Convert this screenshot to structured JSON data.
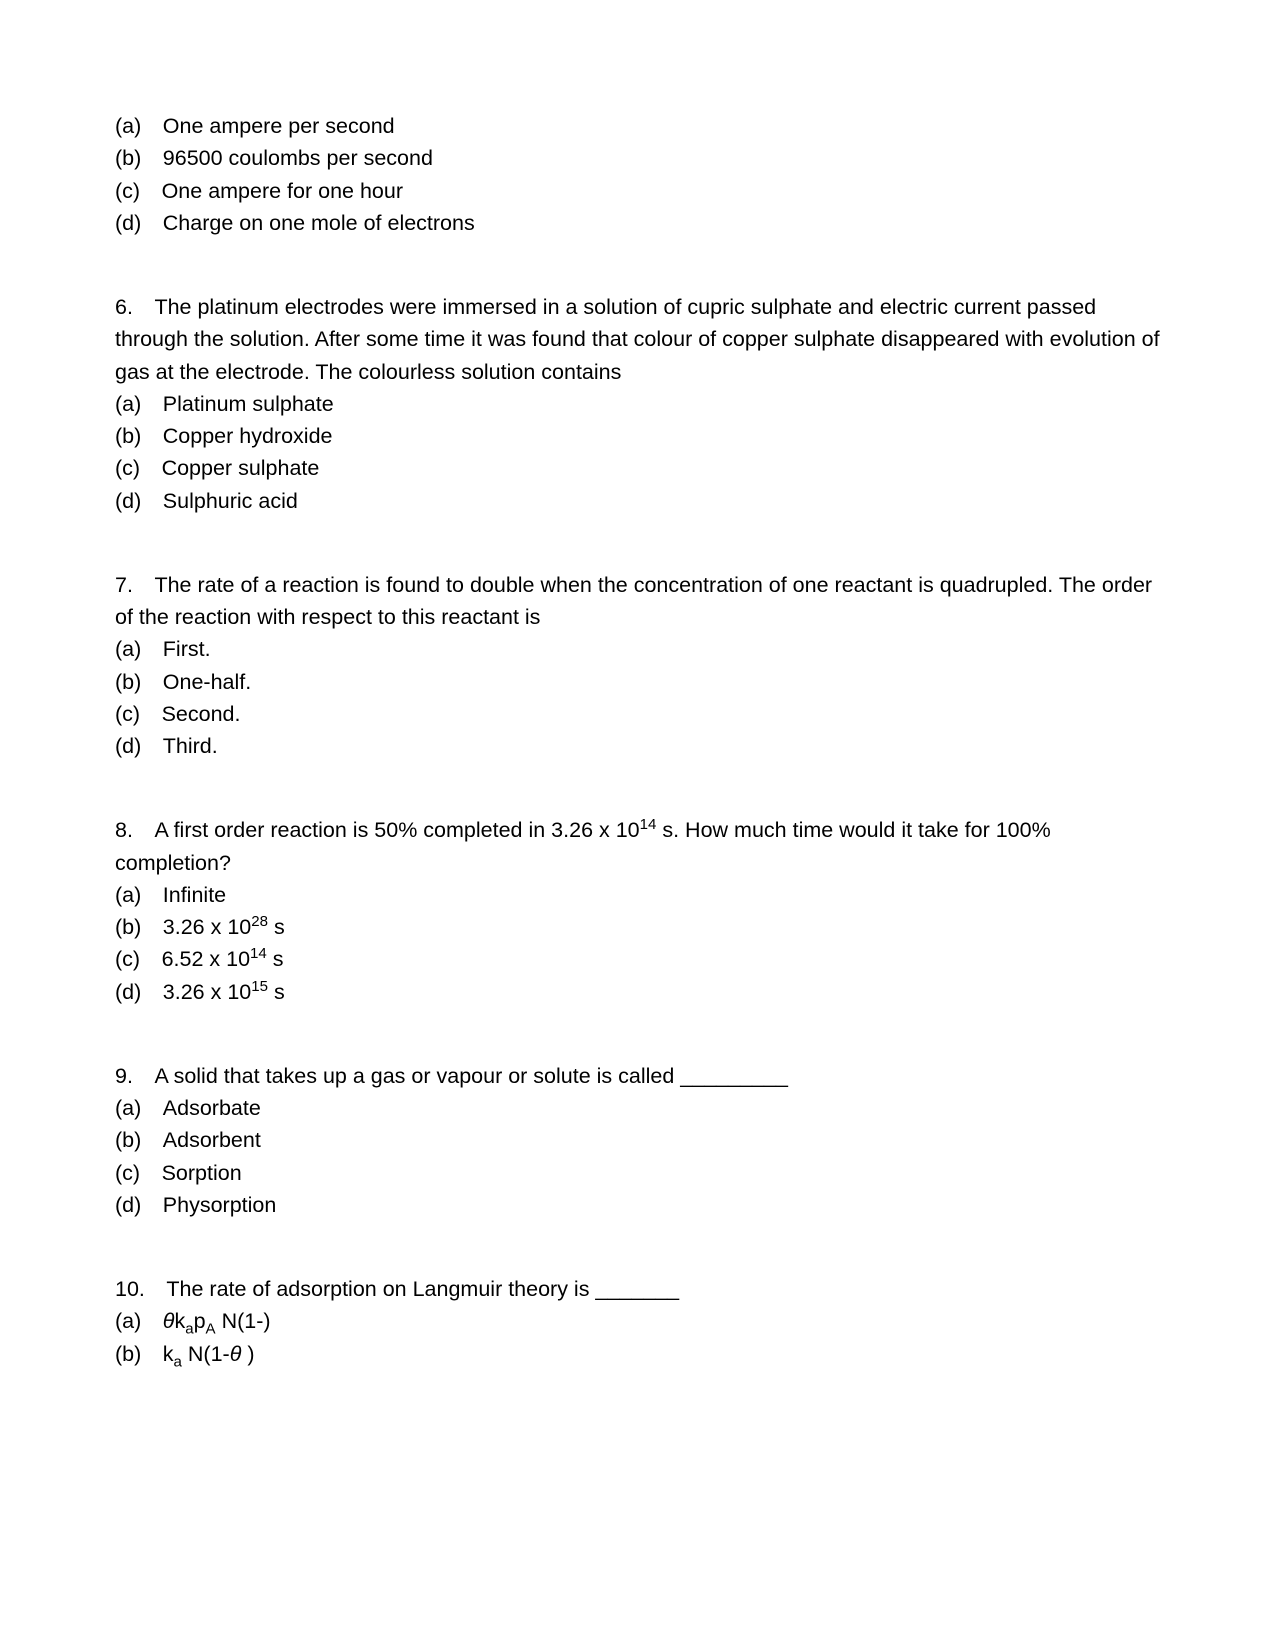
{
  "q5_tail": {
    "options": [
      {
        "letter": "(a)",
        "text": "One ampere per second"
      },
      {
        "letter": "(b)",
        "text": "96500 coulombs per second"
      },
      {
        "letter": "(c)",
        "text": "One ampere for one hour"
      },
      {
        "letter": "(d)",
        "text": "Charge on one mole of electrons"
      }
    ]
  },
  "q6": {
    "number": "6.",
    "stem": "The platinum electrodes were immersed in a solution of cupric sulphate and electric current passed through the solution. After some time it was found that colour of copper sulphate disappeared with evolution of gas at the electrode. The colourless solution contains",
    "options": [
      {
        "letter": "(a)",
        "text": "Platinum sulphate"
      },
      {
        "letter": "(b)",
        "text": "Copper hydroxide"
      },
      {
        "letter": "(c)",
        "text": "Copper sulphate"
      },
      {
        "letter": "(d)",
        "text": "Sulphuric acid"
      }
    ]
  },
  "q7": {
    "number": "7.",
    "stem": "The rate of a reaction is found to double when the concentration of one reactant is quadrupled. The order of the reaction with respect to this reactant is",
    "options": [
      {
        "letter": "(a)",
        "text": "First."
      },
      {
        "letter": "(b)",
        "text": "One-half."
      },
      {
        "letter": "(c)",
        "text": "Second."
      },
      {
        "letter": "(d)",
        "text": "Third."
      }
    ]
  },
  "q8": {
    "number": "8.",
    "stem_pre": "A first order reaction is 50% completed in 3.26 x 10",
    "stem_sup": "14",
    "stem_post": " s. How much time would it take for 100% completion?",
    "options": {
      "a": {
        "letter": "(a)",
        "text": "Infinite"
      },
      "b": {
        "letter": "(b)",
        "pre": "3.26 x 10",
        "sup": "28",
        "post": " s"
      },
      "c": {
        "letter": "(c)",
        "pre": "6.52 x 10",
        "sup": "14",
        "post": " s"
      },
      "d": {
        "letter": "(d)",
        "pre": "3.26 x 10",
        "sup": "15",
        "post": " s"
      }
    }
  },
  "q9": {
    "number": "9.",
    "stem": "A solid that takes up a gas or vapour or solute is called _________",
    "options": [
      {
        "letter": "(a)",
        "text": "Adsorbate"
      },
      {
        "letter": "(b)",
        "text": "Adsorbent"
      },
      {
        "letter": "(c)",
        "text": "Sorption"
      },
      {
        "letter": "(d)",
        "text": "Physorption"
      }
    ]
  },
  "q10": {
    "number": "10.",
    "stem": "The rate of adsorption on Langmuir theory is _______",
    "options": {
      "a": {
        "letter": "(a)",
        "theta": "θ",
        "k": "k",
        "sub1": "a",
        "p": "p",
        "sub2": "A",
        "rest": " N(1-)"
      },
      "b": {
        "letter": "(b)",
        "k": "k",
        "sub1": "a",
        "rest_pre": " N(1-",
        "theta": "θ",
        "rest_post": " )"
      }
    }
  },
  "style": {
    "indent_gap": " "
  }
}
